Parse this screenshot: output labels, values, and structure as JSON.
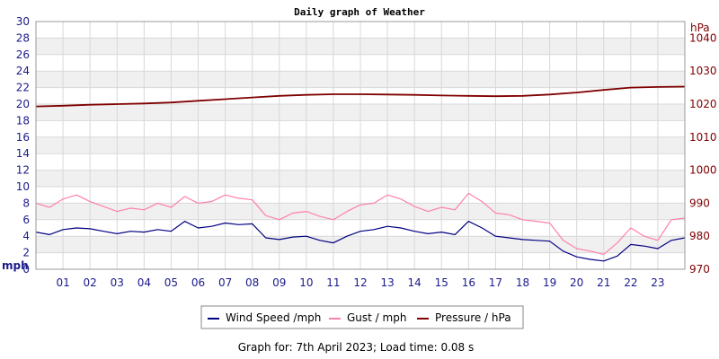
{
  "chart_data": {
    "type": "line",
    "title": "Daily graph of Weather",
    "left_axis": {
      "unit": "mph",
      "ylim": [
        0,
        30
      ],
      "ticks": [
        0,
        2,
        4,
        6,
        8,
        10,
        12,
        14,
        16,
        18,
        20,
        22,
        24,
        26,
        28,
        30
      ]
    },
    "right_axis": {
      "unit": "hPa",
      "ylim": [
        970,
        1045
      ],
      "ticks": [
        970,
        980,
        990,
        1000,
        1010,
        1020,
        1030,
        1040
      ]
    },
    "x_axis": {
      "xlim": [
        0,
        24
      ],
      "ticks": [
        "01",
        "02",
        "03",
        "04",
        "05",
        "06",
        "07",
        "08",
        "09",
        "10",
        "11",
        "12",
        "13",
        "14",
        "15",
        "16",
        "17",
        "18",
        "19",
        "20",
        "21",
        "22",
        "23"
      ]
    },
    "grid": true,
    "legend_placement": "bottom-center",
    "series": [
      {
        "name": "Wind Speed /mph",
        "axis": "left",
        "color": "#000080",
        "x": [
          0,
          0.5,
          1,
          1.5,
          2,
          2.5,
          3,
          3.5,
          4,
          4.5,
          5,
          5.5,
          6,
          6.5,
          7,
          7.5,
          8,
          8.5,
          9,
          9.5,
          10,
          10.5,
          11,
          11.5,
          12,
          12.5,
          13,
          13.5,
          14,
          14.5,
          15,
          15.5,
          16,
          16.5,
          17,
          17.5,
          18,
          18.5,
          19,
          19.5,
          20,
          20.5,
          21,
          21.5,
          22,
          22.5,
          23,
          23.5,
          24
        ],
        "values": [
          4.5,
          4.2,
          4.8,
          5.0,
          4.9,
          4.6,
          4.3,
          4.6,
          4.5,
          4.8,
          4.6,
          5.8,
          5.0,
          5.2,
          5.6,
          5.4,
          5.5,
          3.8,
          3.6,
          3.9,
          4.0,
          3.5,
          3.2,
          4.0,
          4.6,
          4.8,
          5.2,
          5.0,
          4.6,
          4.3,
          4.5,
          4.2,
          5.8,
          5.0,
          4.0,
          3.8,
          3.6,
          3.5,
          3.4,
          2.2,
          1.5,
          1.2,
          1.0,
          1.6,
          3.0,
          2.8,
          2.5,
          3.5,
          3.8
        ]
      },
      {
        "name": "Gust / mph",
        "axis": "left",
        "color": "#ff80a8",
        "x": [
          0,
          0.5,
          1,
          1.5,
          2,
          2.5,
          3,
          3.5,
          4,
          4.5,
          5,
          5.5,
          6,
          6.5,
          7,
          7.5,
          8,
          8.5,
          9,
          9.5,
          10,
          10.5,
          11,
          11.5,
          12,
          12.5,
          13,
          13.5,
          14,
          14.5,
          15,
          15.5,
          16,
          16.5,
          17,
          17.5,
          18,
          18.5,
          19,
          19.5,
          20,
          20.5,
          21,
          21.5,
          22,
          22.5,
          23,
          23.5,
          24
        ],
        "values": [
          8.0,
          7.5,
          8.5,
          9.0,
          8.2,
          7.6,
          7.0,
          7.4,
          7.2,
          8.0,
          7.5,
          8.8,
          8.0,
          8.2,
          9.0,
          8.6,
          8.4,
          6.5,
          6.0,
          6.8,
          7.0,
          6.4,
          6.0,
          7.0,
          7.8,
          8.0,
          9.0,
          8.5,
          7.6,
          7.0,
          7.5,
          7.2,
          9.2,
          8.2,
          6.8,
          6.6,
          6.0,
          5.8,
          5.6,
          3.5,
          2.5,
          2.2,
          1.8,
          3.2,
          5.0,
          4.0,
          3.5,
          6.0,
          6.2
        ]
      },
      {
        "name": "Pressure / hPa",
        "axis": "right",
        "color": "#800000",
        "x": [
          0,
          1,
          2,
          3,
          4,
          5,
          6,
          7,
          8,
          9,
          10,
          11,
          12,
          13,
          14,
          15,
          16,
          17,
          18,
          19,
          20,
          21,
          22,
          23,
          24
        ],
        "values": [
          1019.3,
          1019.5,
          1019.8,
          1020.0,
          1020.2,
          1020.5,
          1021.0,
          1021.5,
          1022.0,
          1022.5,
          1022.8,
          1023.0,
          1023.0,
          1022.9,
          1022.8,
          1022.6,
          1022.5,
          1022.4,
          1022.5,
          1022.9,
          1023.5,
          1024.3,
          1025.0,
          1025.2,
          1025.3
        ]
      }
    ]
  },
  "footer": "Graph for: 7th April 2023; Load time: 0.08 s"
}
